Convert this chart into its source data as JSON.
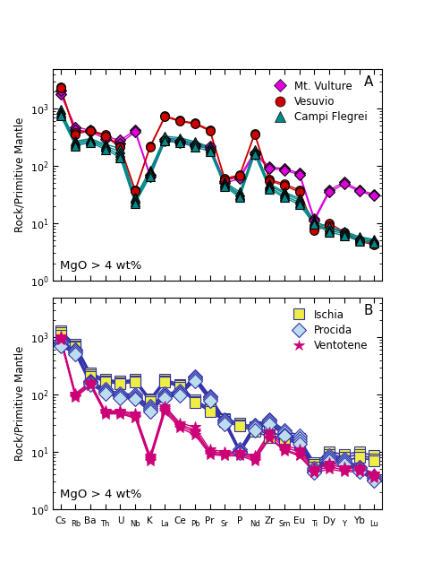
{
  "elements": [
    "Cs",
    "Rb",
    "Ba",
    "Th",
    "U",
    "Nb",
    "K",
    "La",
    "Ce",
    "Pb",
    "Pr",
    "Sr",
    "P",
    "Nd",
    "Zr",
    "Sm",
    "Eu",
    "Ti",
    "Dy",
    "Y",
    "Yb",
    "Lu"
  ],
  "panel_A": {
    "title": "A",
    "ylabel": "Rock/Primitive Mantle",
    "annotation": "MgO > 4 wt%",
    "series": {
      "Mt. Vulture": {
        "color": "#dd00dd",
        "marker": "D",
        "markersize": 6,
        "lw": 1.0,
        "data": [
          [
            1800,
            480,
            420,
            330,
            280,
            420,
            70,
            300,
            270,
            240,
            220,
            55,
            65,
            175,
            95,
            90,
            75,
            12,
            38,
            52,
            38,
            32
          ],
          [
            2100,
            430,
            390,
            300,
            250,
            390,
            65,
            275,
            255,
            225,
            200,
            50,
            60,
            160,
            90,
            85,
            70,
            11,
            35,
            48,
            36,
            30
          ]
        ]
      },
      "Vesuvio": {
        "color": "#cc0000",
        "marker": "o",
        "markersize": 7,
        "lw": 1.0,
        "data": [
          [
            2400,
            380,
            420,
            350,
            220,
            38,
            220,
            750,
            620,
            560,
            430,
            60,
            70,
            370,
            58,
            48,
            38,
            8,
            10,
            7,
            5,
            4.5
          ],
          [
            2300,
            360,
            410,
            330,
            210,
            36,
            210,
            720,
            600,
            540,
            410,
            57,
            67,
            355,
            55,
            45,
            35,
            7.5,
            9,
            6.5,
            4.8,
            4.2
          ]
        ]
      },
      "Campi Flegrei": {
        "color": "#008888",
        "marker": "^",
        "markersize": 7,
        "lw": 1.0,
        "data": [
          [
            960,
            270,
            300,
            240,
            200,
            28,
            85,
            310,
            290,
            250,
            205,
            52,
            35,
            185,
            48,
            35,
            27,
            11,
            8,
            7,
            5.5,
            5
          ],
          [
            880,
            255,
            285,
            225,
            175,
            26,
            78,
            330,
            310,
            265,
            215,
            50,
            32,
            195,
            45,
            33,
            25,
            10.5,
            8.5,
            7.2,
            5.8,
            5.2
          ],
          [
            820,
            240,
            270,
            210,
            155,
            24,
            72,
            290,
            275,
            235,
            195,
            47,
            30,
            172,
            42,
            30,
            23,
            10,
            7.5,
            6.5,
            5.2,
            4.8
          ],
          [
            760,
            225,
            255,
            195,
            140,
            22,
            66,
            270,
            255,
            215,
            180,
            44,
            28,
            158,
            39,
            28,
            21,
            9.5,
            7,
            6,
            4.9,
            4.5
          ]
        ]
      }
    }
  },
  "panel_B": {
    "title": "B",
    "ylabel": "Rock/Primitive Mantle",
    "annotation": "MgO > 4 wt%",
    "series": {
      "Ischia": {
        "color": "#eeee44",
        "edgecolor": "#3333aa",
        "lc": "#3333aa",
        "marker": "s",
        "markersize": 8,
        "lw": 1.2,
        "data": [
          [
            1300,
            750,
            240,
            185,
            170,
            185,
            85,
            185,
            150,
            80,
            58,
            38,
            32,
            27,
            22,
            19,
            17,
            6.5,
            10,
            9,
            10,
            8.5
          ],
          [
            1200,
            710,
            225,
            175,
            162,
            175,
            80,
            175,
            142,
            76,
            54,
            36,
            30,
            25,
            20,
            17,
            15,
            6,
            9,
            8,
            9,
            7.5
          ],
          [
            1100,
            670,
            210,
            165,
            154,
            165,
            75,
            165,
            135,
            72,
            51,
            34,
            28,
            23,
            18,
            16,
            14,
            5.5,
            8,
            7,
            8,
            7
          ]
        ]
      },
      "Procida": {
        "color": "#bbddee",
        "edgecolor": "#3333aa",
        "lc": "#3333aa",
        "marker": "D",
        "markersize": 8,
        "lw": 1.2,
        "data": [
          [
            850,
            620,
            175,
            125,
            105,
            100,
            62,
            105,
            115,
            210,
            95,
            37,
            11,
            30,
            37,
            24,
            19,
            5.2,
            8.5,
            7.5,
            5.5,
            3.8
          ],
          [
            790,
            580,
            165,
            118,
            98,
            94,
            58,
            98,
            108,
            198,
            89,
            35,
            10.5,
            28,
            35,
            22,
            17,
            4.9,
            8,
            7,
            5.2,
            3.5
          ],
          [
            740,
            545,
            158,
            112,
            93,
            88,
            54,
            93,
            103,
            186,
            84,
            33,
            10,
            26,
            33,
            20,
            15.5,
            4.6,
            7.5,
            6.5,
            4.9,
            3.3
          ],
          [
            700,
            515,
            150,
            106,
            88,
            83,
            50,
            88,
            98,
            174,
            79,
            31,
            9.5,
            24,
            31,
            19,
            14,
            4.3,
            7,
            6,
            4.6,
            3.1
          ]
        ]
      },
      "Ventotene": {
        "color": "#cc0077",
        "edgecolor": "#cc0077",
        "lc": "#cc0077",
        "marker": "*",
        "markersize": 9,
        "lw": 1.0,
        "data": [
          [
            1050,
            105,
            165,
            52,
            52,
            47,
            8.5,
            62,
            32,
            27,
            11,
            10,
            10,
            8.5,
            22,
            13,
            11,
            5.2,
            6.5,
            5.5,
            5.5,
            4.2
          ],
          [
            1000,
            100,
            158,
            50,
            50,
            44,
            8,
            58,
            30,
            24,
            10,
            9.5,
            9.5,
            8,
            20,
            12,
            10,
            4.9,
            6,
            5.2,
            5.2,
            4
          ],
          [
            950,
            95,
            150,
            48,
            48,
            41,
            7.5,
            54,
            28,
            22,
            9.5,
            9,
            9,
            7.5,
            18,
            11,
            9,
            4.6,
            5.5,
            4.8,
            4.8,
            3.8
          ],
          [
            900,
            90,
            143,
            46,
            46,
            39,
            7,
            50,
            26,
            20,
            9,
            8.5,
            8.5,
            7,
            17,
            10.5,
            8.5,
            4.3,
            5,
            4.5,
            4.5,
            3.5
          ]
        ]
      }
    }
  },
  "ylim": [
    1,
    5000
  ],
  "background_color": "#ffffff",
  "label_big_fontsize": 7.5,
  "label_small_fontsize": 6.0
}
